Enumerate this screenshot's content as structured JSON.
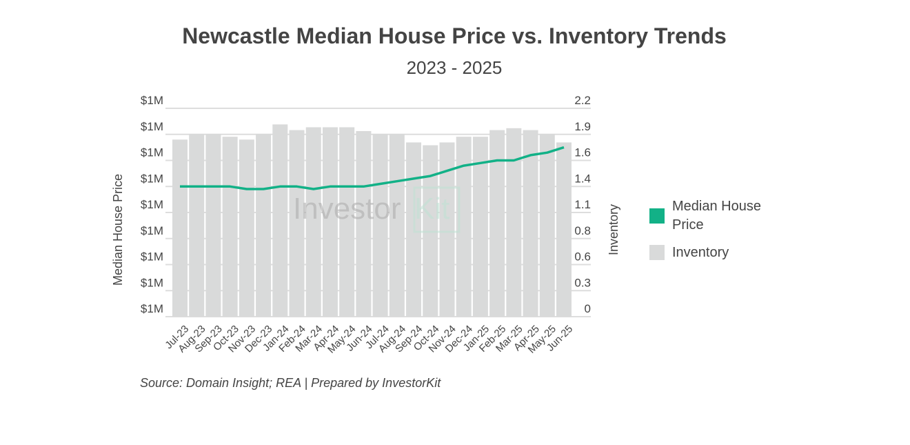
{
  "chart_data": {
    "type": "bar+line",
    "title": "Newcastle Median House Price vs. Inventory Trends",
    "subtitle": "2023 - 2025",
    "source": "Source: Domain Insight; REA | Prepared by InvestorKit",
    "watermark": "InvestorKit",
    "categories": [
      "Jul-23",
      "Aug-23",
      "Sep-23",
      "Oct-23",
      "Nov-23",
      "Dec-23",
      "Jan-24",
      "Feb-24",
      "Mar-24",
      "Apr-24",
      "May-24",
      "Jun-24",
      "Jul-24",
      "Aug-24",
      "Sep-24",
      "Oct-24",
      "Nov-24",
      "Dec-24",
      "Jan-25",
      "Feb-25",
      "Mar-25",
      "Apr-25",
      "May-25",
      "Jun-25"
    ],
    "ylabel_left": "Median House Price",
    "ylabel_right": "Inventory",
    "left_ticks": [
      "$1M",
      "$1M",
      "$1M",
      "$1M",
      "$1M",
      "$1M",
      "$1M",
      "$1M",
      "$1M"
    ],
    "right_ticks": [
      "0",
      "0.3",
      "0.6",
      "0.8",
      "1.1",
      "1.4",
      "1.6",
      "1.9",
      "2.2"
    ],
    "ylim_left": [
      0.96,
      1.04
    ],
    "ylim_right": [
      0,
      2.2
    ],
    "grid": true,
    "legend_position": "right",
    "series": [
      {
        "name": "Median House Price",
        "kind": "line",
        "axis": "left",
        "color": "#12b187",
        "values": [
          1.01,
          1.01,
          1.01,
          1.01,
          1.009,
          1.009,
          1.01,
          1.01,
          1.009,
          1.01,
          1.01,
          1.01,
          1.011,
          1.012,
          1.013,
          1.014,
          1.016,
          1.018,
          1.019,
          1.02,
          1.02,
          1.022,
          1.023,
          1.025
        ]
      },
      {
        "name": "Inventory",
        "kind": "bar",
        "axis": "right",
        "color": "#d9dada",
        "values": [
          1.87,
          1.93,
          1.93,
          1.9,
          1.87,
          1.93,
          2.03,
          1.97,
          2.0,
          2.0,
          2.0,
          1.96,
          1.93,
          1.93,
          1.84,
          1.81,
          1.84,
          1.9,
          1.9,
          1.97,
          1.99,
          1.97,
          1.93,
          1.84
        ]
      }
    ]
  }
}
